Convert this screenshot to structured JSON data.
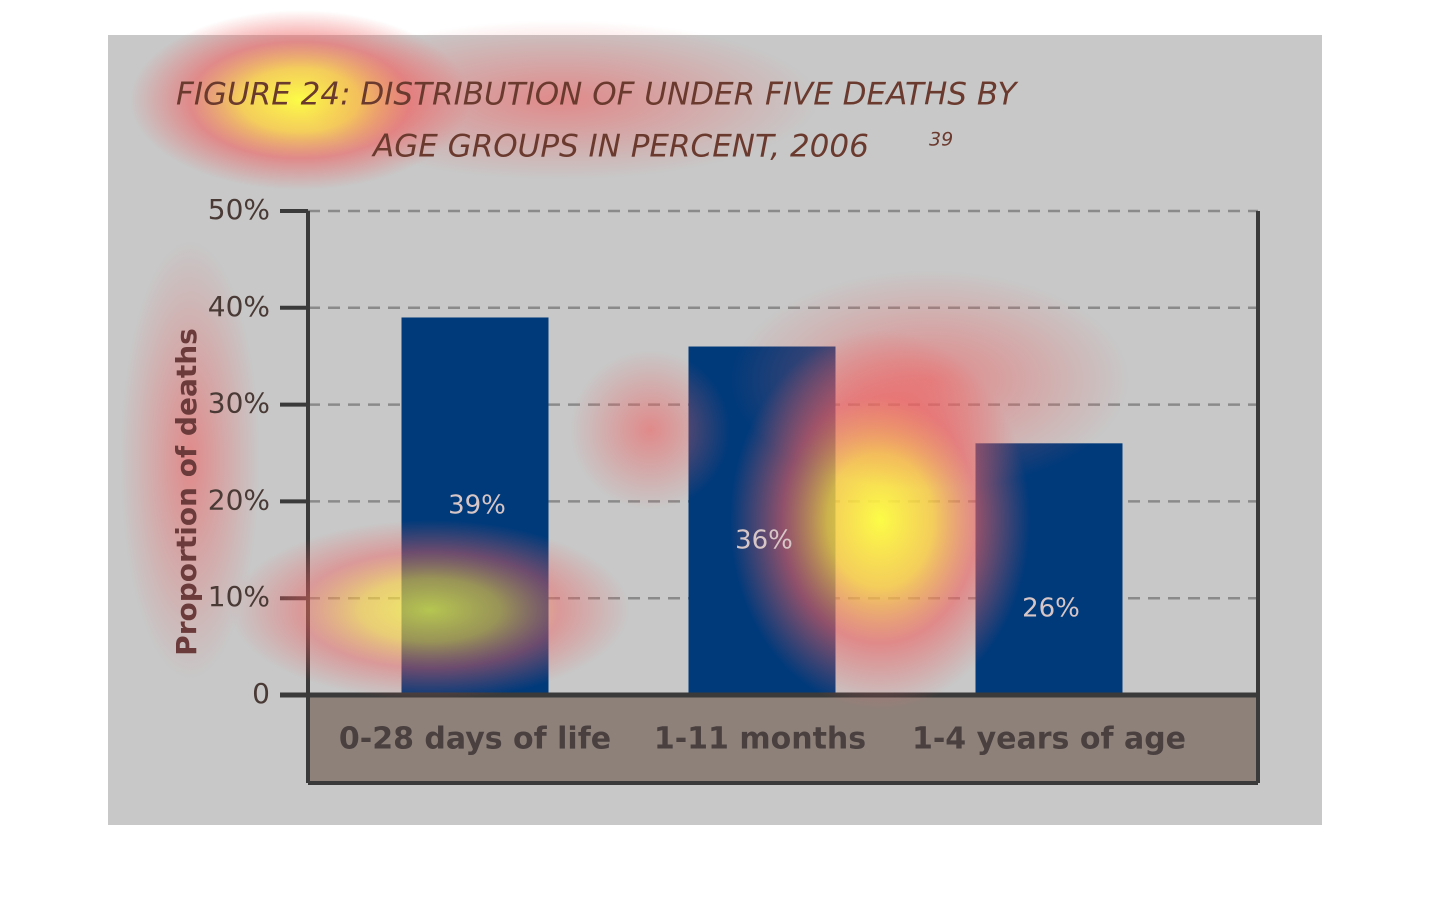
{
  "chart_data": {
    "type": "bar",
    "title": [
      "FIGURE 24: DISTRIBUTION OF UNDER FIVE DEATHS BY",
      "AGE GROUPS IN PERCENT, 2006"
    ],
    "title_note": "39",
    "y_label": "Proportion of deaths",
    "categories": [
      "0-28 days of life",
      "1-11 months",
      "1-4 years of age"
    ],
    "values": [
      39,
      36,
      26
    ],
    "value_labels": [
      "39%",
      "36%",
      "26%"
    ],
    "color": "#003a7a",
    "ylim": [
      0,
      50
    ],
    "yticks": [
      0,
      {
        "value": 10,
        "label": "10%"
      },
      {
        "value": 20,
        "label": "20%"
      },
      {
        "value": 30,
        "label": "30%"
      },
      {
        "value": 40,
        "label": "40%"
      },
      {
        "value": 50,
        "label": "50%"
      }
    ],
    "grid": true
  }
}
